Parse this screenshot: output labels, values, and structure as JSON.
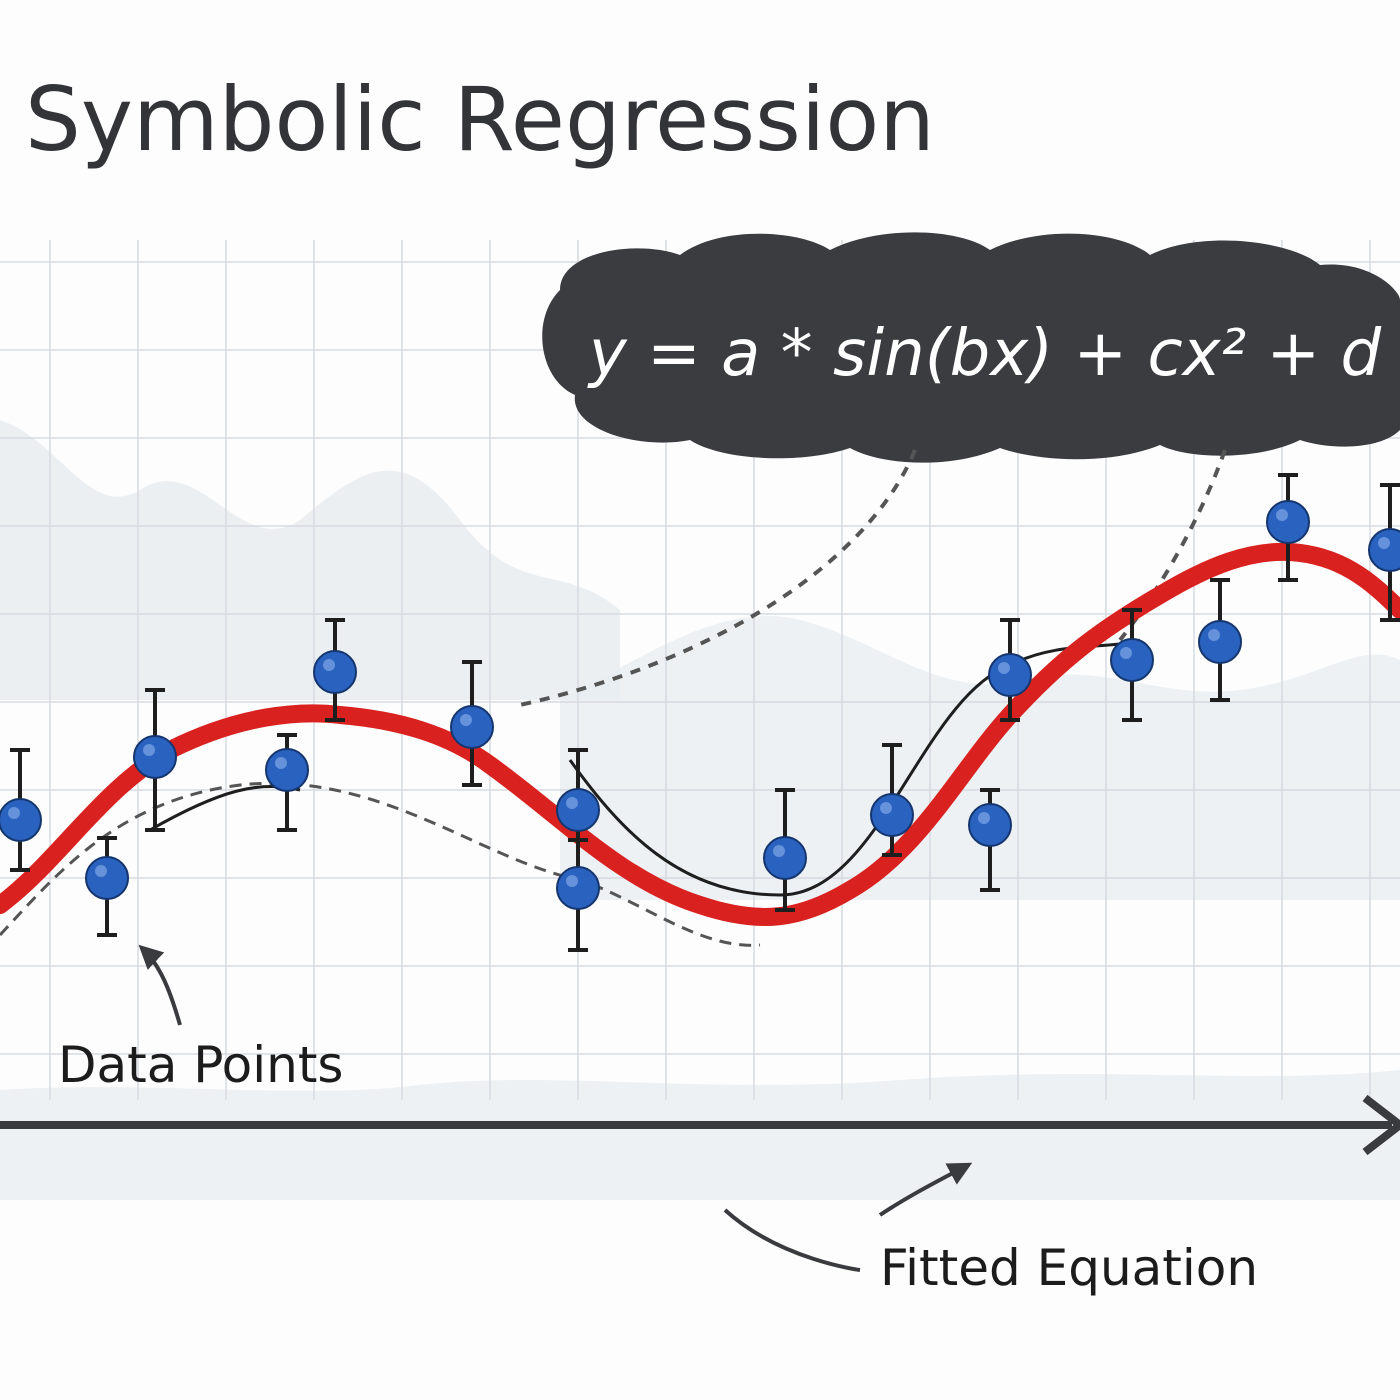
{
  "header": {
    "title": "Symbolic Regression"
  },
  "equation": "y = a * sin(bx) + cx² + d",
  "labels": {
    "data_points": "Data Points",
    "fitted_equation": "Fitted Equation"
  }
}
